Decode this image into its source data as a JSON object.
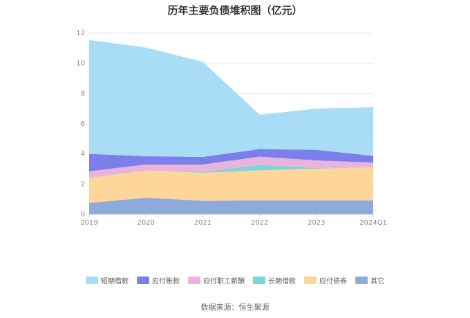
{
  "chart_data": {
    "type": "area",
    "stacked": true,
    "title": "历年主要负债堆积图（亿元）",
    "categories": [
      "2019",
      "2020",
      "2021",
      "2022",
      "2023",
      "2024Q1"
    ],
    "ylim": [
      0,
      12
    ],
    "yticks": [
      0,
      2,
      4,
      6,
      8,
      10,
      12
    ],
    "grid": true,
    "legend_position": "bottom",
    "series": [
      {
        "name": "其它",
        "color": "#8eaadb",
        "values": [
          0.75,
          1.1,
          0.9,
          0.92,
          0.92,
          0.92
        ]
      },
      {
        "name": "应付债券",
        "color": "#ffd699",
        "values": [
          1.65,
          1.8,
          1.85,
          2.0,
          2.1,
          2.2
        ]
      },
      {
        "name": "长期借款",
        "color": "#7dd3d8",
        "values": [
          0.0,
          0.0,
          0.05,
          0.35,
          0.05,
          0.0
        ]
      },
      {
        "name": "应付职工薪酬",
        "color": "#e8b4dc",
        "values": [
          0.45,
          0.4,
          0.5,
          0.55,
          0.5,
          0.3
        ]
      },
      {
        "name": "应付账款",
        "color": "#7b7fea",
        "values": [
          1.15,
          0.55,
          0.5,
          0.5,
          0.7,
          0.45
        ]
      },
      {
        "name": "短期借款",
        "color": "#a8dcf7",
        "values": [
          7.55,
          7.2,
          6.3,
          2.28,
          2.73,
          3.23
        ]
      }
    ]
  },
  "source": "数据来源：恒生聚源"
}
